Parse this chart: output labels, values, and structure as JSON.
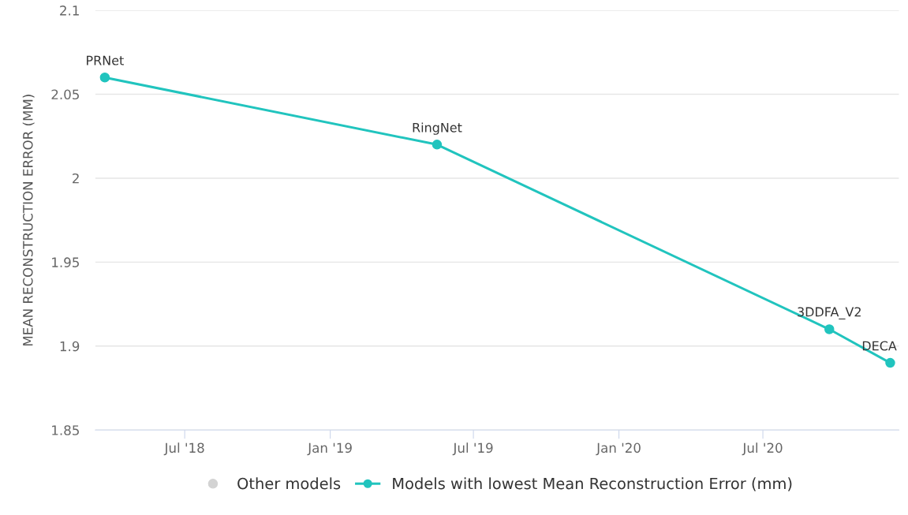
{
  "chart_data": {
    "type": "line",
    "ylabel": "MEAN RECONSTRUCTION ERROR (MM)",
    "x": [
      "2018-03-22",
      "2019-05-16",
      "2020-09-23",
      "2020-12-09"
    ],
    "series": [
      {
        "name": "Other models",
        "color": "#d3d3d3",
        "type": "scatter",
        "values": [
          null,
          null,
          null,
          null
        ]
      },
      {
        "name": "Models with lowest Mean Reconstruction Error (mm)",
        "color": "#21c4be",
        "values": [
          2.06,
          2.02,
          1.91,
          1.89
        ]
      }
    ],
    "annotations": [
      {
        "text": "PRNet",
        "x": "2018-03-22",
        "y": 2.06
      },
      {
        "text": "RingNet",
        "x": "2019-05-16",
        "y": 2.02
      },
      {
        "text": "3DDFA_V2",
        "x": "2020-09-23",
        "y": 1.91
      },
      {
        "text": "DECA",
        "x": "2020-12-09",
        "y": 1.89
      }
    ],
    "xlim": [
      "2018-03-10",
      "2020-12-20"
    ],
    "xticks": [
      {
        "value": "2018-07-01",
        "label": "Jul '18"
      },
      {
        "value": "2019-01-01",
        "label": "Jan '19"
      },
      {
        "value": "2019-07-01",
        "label": "Jul '19"
      },
      {
        "value": "2020-01-01",
        "label": "Jan '20"
      },
      {
        "value": "2020-07-01",
        "label": "Jul '20"
      }
    ],
    "ylim": [
      1.85,
      2.1
    ],
    "yticks": [
      1.85,
      1.9,
      1.95,
      2,
      2.05,
      2.1
    ],
    "grid": "y",
    "legend": "bottom",
    "marker": "circle",
    "line_style": "solid"
  }
}
